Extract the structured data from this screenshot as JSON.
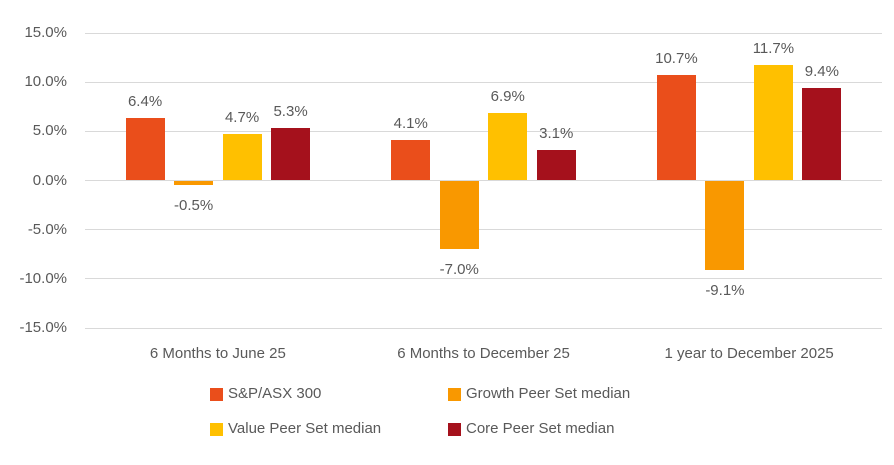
{
  "chart_data": {
    "type": "bar",
    "categories": [
      "6 Months to June 25",
      "6 Months to December 25",
      "1 year to December 2025"
    ],
    "series": [
      {
        "name": "S&P/ASX 300",
        "color": "#EA4E1B",
        "values": [
          6.4,
          4.1,
          10.7
        ],
        "labels": [
          "6.4%",
          "4.1%",
          "10.7%"
        ]
      },
      {
        "name": "Growth Peer Set median",
        "color": "#F99800",
        "values": [
          -0.5,
          -7.0,
          -9.1
        ],
        "labels": [
          "-0.5%",
          "-7.0%",
          "-9.1%"
        ]
      },
      {
        "name": "Value Peer Set median",
        "color": "#FFC000",
        "values": [
          4.7,
          6.9,
          11.7
        ],
        "labels": [
          "4.7%",
          "6.9%",
          "11.7%"
        ]
      },
      {
        "name": "Core Peer Set median",
        "color": "#A5111C",
        "values": [
          5.3,
          3.1,
          9.4
        ],
        "labels": [
          "5.3%",
          "3.1%",
          "9.4%"
        ]
      }
    ],
    "title": "",
    "xlabel": "",
    "ylabel": "",
    "y_axis": {
      "min": -15,
      "max": 15,
      "step": 5,
      "tick_labels": [
        "15.0%",
        "10.0%",
        "5.0%",
        "0.0%",
        "-5.0%",
        "-10.0%",
        "-15.0%"
      ]
    },
    "grid": true,
    "legend_position": "bottom",
    "colors": {
      "grid": "#D9D9D9",
      "text": "#595959",
      "background": "#FFFFFF"
    }
  },
  "legend": {
    "items": [
      {
        "label": "S&P/ASX 300",
        "color": "#EA4E1B"
      },
      {
        "label": "Growth Peer Set median",
        "color": "#F99800"
      },
      {
        "label": "Value Peer Set median",
        "color": "#FFC000"
      },
      {
        "label": "Core Peer Set median",
        "color": "#A5111C"
      }
    ]
  }
}
